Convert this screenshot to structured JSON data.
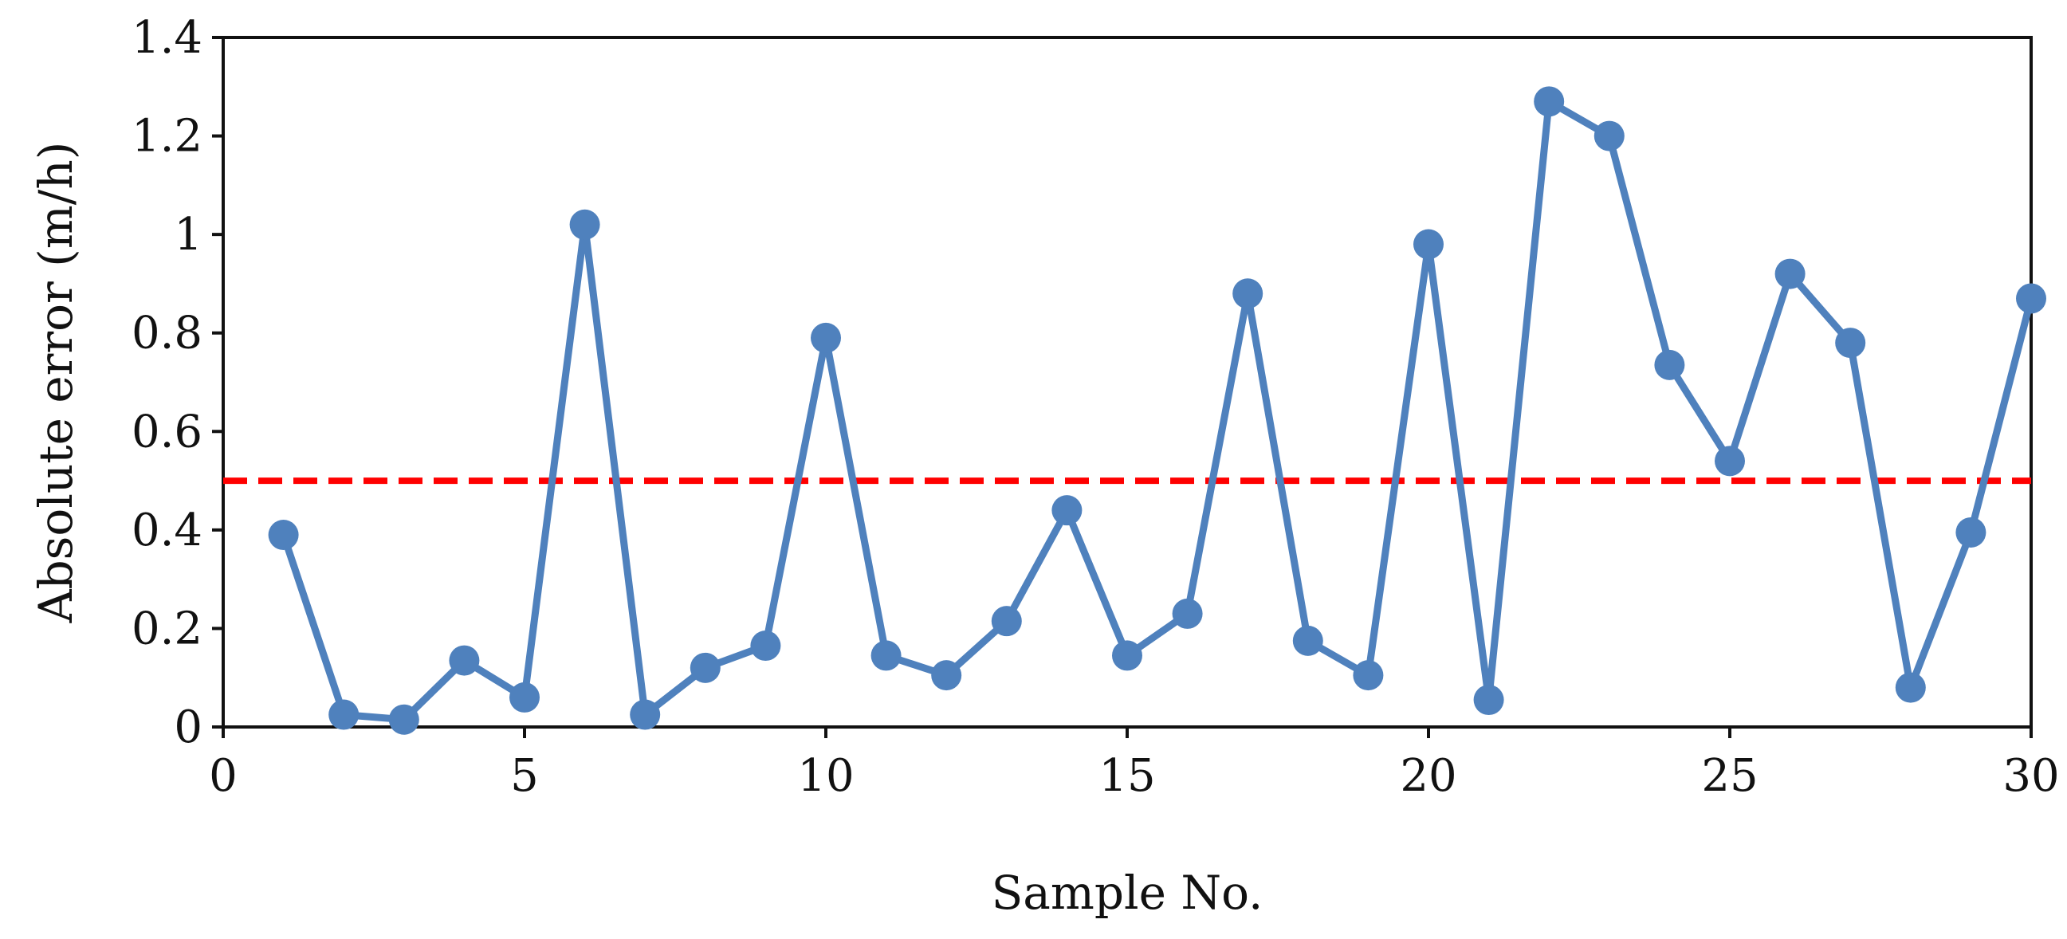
{
  "chart_data": {
    "type": "line",
    "title": "",
    "xlabel": "Sample No.",
    "ylabel": "Absolute error (m/h)",
    "xlim": [
      0,
      30
    ],
    "ylim": [
      0,
      1.4
    ],
    "x_ticks": [
      "0",
      "5",
      "10",
      "15",
      "20",
      "25",
      "30"
    ],
    "y_ticks": [
      "0",
      "0.2",
      "0.4",
      "0.6",
      "0.8",
      "1",
      "1.2",
      "1.4"
    ],
    "grid": false,
    "legend": "none",
    "series": [
      {
        "color": "#4f81bd",
        "marker": "circle",
        "x": [
          1,
          2,
          3,
          4,
          5,
          6,
          7,
          8,
          9,
          10,
          11,
          12,
          13,
          14,
          15,
          16,
          17,
          18,
          19,
          20,
          21,
          22,
          23,
          24,
          25,
          26,
          27,
          28,
          29,
          30
        ],
        "values": [
          0.39,
          0.025,
          0.015,
          0.135,
          0.06,
          1.02,
          0.025,
          0.12,
          0.165,
          0.79,
          0.145,
          0.105,
          0.215,
          0.44,
          0.145,
          0.23,
          0.88,
          0.175,
          0.105,
          0.98,
          0.055,
          1.27,
          1.2,
          0.735,
          0.54,
          0.92,
          0.78,
          0.08,
          0.395,
          0.87
        ]
      }
    ],
    "reference_line": {
      "y": 0.5,
      "color": "#ff0000",
      "style": "dashed"
    }
  }
}
